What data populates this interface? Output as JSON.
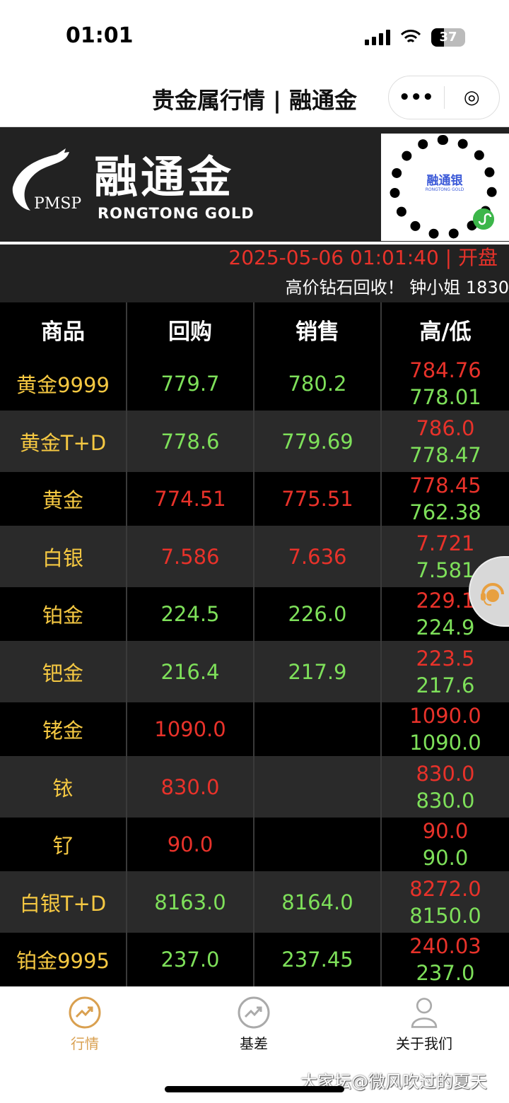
{
  "status_bar": {
    "time": "01:01",
    "battery": "37"
  },
  "navbar": {
    "title": "贵金属行情 | 融通金",
    "more_icon": "•••",
    "target_icon": "◎"
  },
  "banner": {
    "brand_cn": "融通金",
    "brand_en": "RONGTONG  GOLD",
    "logo_text": "PMSP",
    "qr_label": "融通银",
    "qr_sub": "RONGTONG GOLD"
  },
  "info": {
    "datetime": "2025-05-06 01:01:40 | 开盘",
    "ticker": "高价钻石回收！ 钟小姐 1830"
  },
  "table": {
    "headers": [
      "商品",
      "回购",
      "销售",
      "高/低"
    ],
    "rows": [
      {
        "name": "黄金9999",
        "buy": "779.7",
        "sell": "780.2",
        "high": "784.76",
        "low": "778.01",
        "color": "green"
      },
      {
        "name": "黄金T+D",
        "buy": "778.6",
        "sell": "779.69",
        "high": "786.0",
        "low": "778.47",
        "color": "green"
      },
      {
        "name": "黄金",
        "buy": "774.51",
        "sell": "775.51",
        "high": "778.45",
        "low": "762.38",
        "color": "red"
      },
      {
        "name": "白银",
        "buy": "7.586",
        "sell": "7.636",
        "high": "7.721",
        "low": "7.581",
        "color": "red"
      },
      {
        "name": "铂金",
        "buy": "224.5",
        "sell": "226.0",
        "high": "229.1",
        "low": "224.9",
        "color": "green"
      },
      {
        "name": "钯金",
        "buy": "216.4",
        "sell": "217.9",
        "high": "223.5",
        "low": "217.6",
        "color": "green"
      },
      {
        "name": "铑金",
        "buy": "1090.0",
        "sell": "",
        "high": "1090.0",
        "low": "1090.0",
        "color": "red"
      },
      {
        "name": "铱",
        "buy": "830.0",
        "sell": "",
        "high": "830.0",
        "low": "830.0",
        "color": "red"
      },
      {
        "name": "钌",
        "buy": "90.0",
        "sell": "",
        "high": "90.0",
        "low": "90.0",
        "color": "red"
      },
      {
        "name": "白银T+D",
        "buy": "8163.0",
        "sell": "8164.0",
        "high": "8272.0",
        "low": "8150.0",
        "color": "green"
      },
      {
        "name": "铂金9995",
        "buy": "237.0",
        "sell": "237.45",
        "high": "240.03",
        "low": "237.0",
        "color": "green"
      }
    ]
  },
  "tabbar": {
    "items": [
      {
        "label": "行情",
        "active": true
      },
      {
        "label": "基差",
        "active": false
      },
      {
        "label": "关于我们",
        "active": false
      }
    ]
  },
  "colors": {
    "accent": "#d9a050",
    "name": "#f5c842",
    "up": "#e8322a",
    "down": "#7ee05a"
  },
  "watermark": "大家坛@微风吹过的夏天"
}
